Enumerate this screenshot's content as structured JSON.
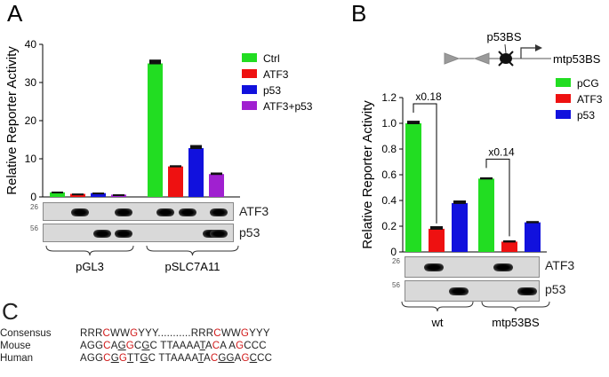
{
  "panels": {
    "a": {
      "letter": "A"
    },
    "b": {
      "letter": "B"
    },
    "c": {
      "letter": "C"
    }
  },
  "chart_data": [
    {
      "panel": "A",
      "type": "bar",
      "ylabel": "Relative Reporter Activity",
      "ylim": [
        0,
        40
      ],
      "yticks": [
        0,
        10,
        20,
        30,
        40
      ],
      "groups": [
        "pGL3",
        "pSLC7A11"
      ],
      "legend": {
        "placement": "top-right"
      },
      "series": [
        {
          "name": "Ctrl",
          "color": "#22dd22",
          "values": [
            1.2,
            35.0
          ],
          "errors": [
            0.2,
            1.0
          ]
        },
        {
          "name": "ATF3",
          "color": "#ee1111",
          "values": [
            0.8,
            8.0
          ],
          "errors": [
            0.1,
            0.3
          ]
        },
        {
          "name": "p53",
          "color": "#1111dd",
          "values": [
            1.0,
            12.8
          ],
          "errors": [
            0.15,
            0.8
          ]
        },
        {
          "name": "ATF3+p53",
          "color": "#a020d0",
          "values": [
            0.6,
            6.0
          ],
          "errors": [
            0.1,
            0.4
          ]
        }
      ],
      "blots": [
        {
          "label": "ATF3",
          "marker": "26",
          "bands": [
            0,
            1,
            0,
            1,
            1,
            1,
            0,
            1
          ]
        },
        {
          "label": "p53",
          "marker": "56",
          "bands": [
            0,
            0,
            1,
            1,
            0,
            0,
            1,
            1
          ]
        }
      ]
    },
    {
      "panel": "B",
      "type": "bar",
      "ylabel": "Relative Reporter Activity",
      "ylim": [
        0,
        1.2
      ],
      "yticks": [
        0,
        0.2,
        0.4,
        0.6,
        0.8,
        1.0,
        1.2
      ],
      "groups": [
        "wt",
        "mtp53BS"
      ],
      "legend": {
        "placement": "top-right"
      },
      "series": [
        {
          "name": "pCG",
          "color": "#22dd22",
          "values": [
            1.0,
            0.57
          ],
          "errors": [
            0.02,
            0.01
          ]
        },
        {
          "name": "ATF3",
          "color": "#ee1111",
          "values": [
            0.18,
            0.08
          ],
          "errors": [
            0.02,
            0.01
          ]
        },
        {
          "name": "p53",
          "color": "#1111dd",
          "values": [
            0.38,
            0.23
          ],
          "errors": [
            0.02,
            0.01
          ]
        }
      ],
      "annotations": [
        {
          "text": "x0.18",
          "group": 0
        },
        {
          "text": "x0.14",
          "group": 1
        }
      ],
      "construct": {
        "site_label": "p53BS",
        "mutant_label": "mtp53BS"
      },
      "blots": [
        {
          "label": "ATF3",
          "marker": "26",
          "bands": [
            0,
            1,
            0,
            0,
            1,
            0
          ]
        },
        {
          "label": "p53",
          "marker": "56",
          "bands": [
            0,
            0,
            1,
            0,
            0,
            1
          ]
        }
      ]
    }
  ],
  "sequences": {
    "rows": [
      {
        "name": "Consensus",
        "segments": [
          {
            "t": "RRR",
            "c": ""
          },
          {
            "t": "C",
            "c": "red"
          },
          {
            "t": "WW",
            "c": ""
          },
          {
            "t": "G",
            "c": "red"
          },
          {
            "t": "YYY...........RRR",
            "c": ""
          },
          {
            "t": "C",
            "c": "red"
          },
          {
            "t": "WW",
            "c": ""
          },
          {
            "t": "G",
            "c": "red"
          },
          {
            "t": "YYY",
            "c": ""
          }
        ]
      },
      {
        "name": "Mouse",
        "segments": [
          {
            "t": "AGG",
            "c": ""
          },
          {
            "t": "C",
            "c": "red"
          },
          {
            "t": "A",
            "c": ""
          },
          {
            "t": "G",
            "c": "ul"
          },
          {
            "t": "G",
            "c": "red"
          },
          {
            "t": "C",
            "c": ""
          },
          {
            "t": "G",
            "c": "ul"
          },
          {
            "t": "C TTAAA",
            "c": ""
          },
          {
            "t": "A",
            "c": ""
          },
          {
            "t": "T",
            "c": "ul"
          },
          {
            "t": "A",
            "c": ""
          },
          {
            "t": "C",
            "c": "red"
          },
          {
            "t": "A A",
            "c": ""
          },
          {
            "t": "G",
            "c": "red"
          },
          {
            "t": "CCC",
            "c": ""
          }
        ]
      },
      {
        "name": "Human",
        "segments": [
          {
            "t": "AGG",
            "c": ""
          },
          {
            "t": "C",
            "c": "red"
          },
          {
            "t": "G",
            "c": "ul"
          },
          {
            "t": "G",
            "c": "red"
          },
          {
            "t": "T",
            "c": "ul"
          },
          {
            "t": "T",
            "c": ""
          },
          {
            "t": "G",
            "c": "ul"
          },
          {
            "t": "C TTAAA",
            "c": ""
          },
          {
            "t": "A",
            "c": ""
          },
          {
            "t": "T",
            "c": "ul"
          },
          {
            "t": "A",
            "c": ""
          },
          {
            "t": "C",
            "c": "red"
          },
          {
            "t": "GG",
            "c": "ul"
          },
          {
            "t": "A",
            "c": ""
          },
          {
            "t": "G",
            "c": "red"
          },
          {
            "t": "C",
            "c": "ul"
          },
          {
            "t": "CC",
            "c": ""
          }
        ]
      }
    ]
  }
}
